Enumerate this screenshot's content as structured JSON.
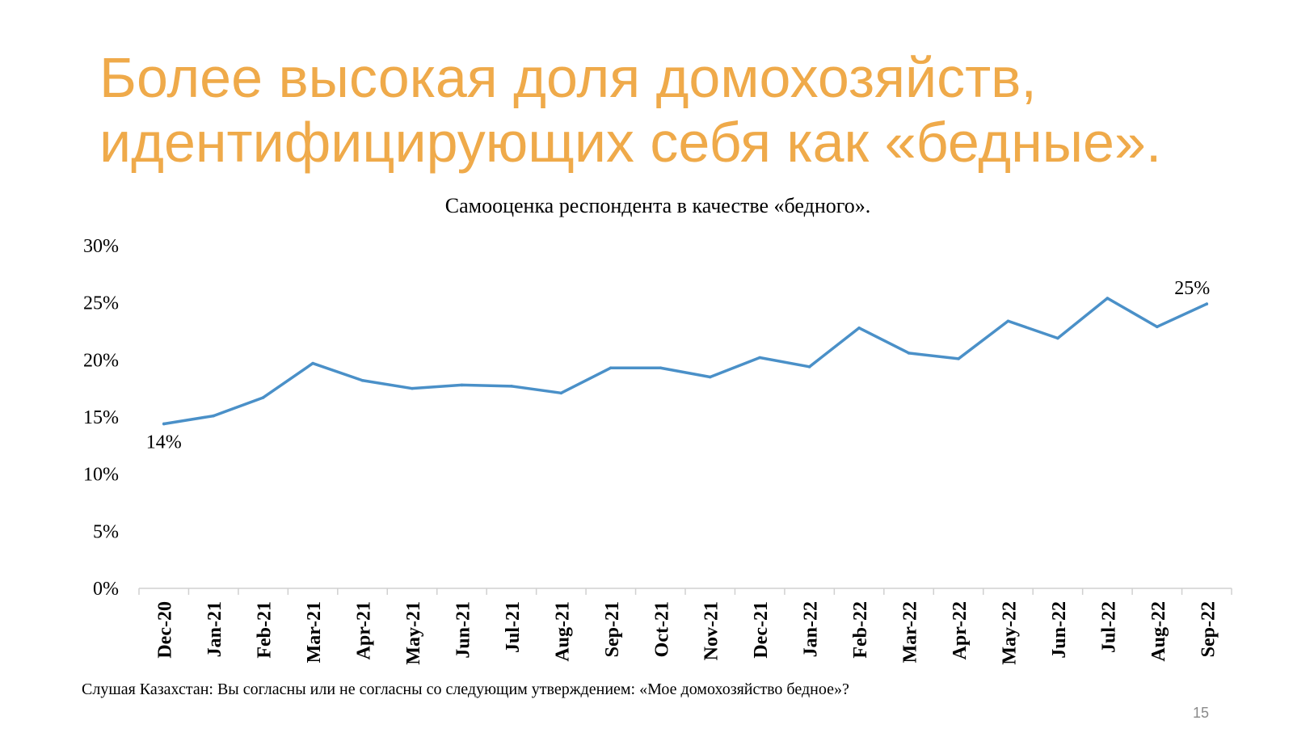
{
  "slide": {
    "title_line1": "Более высокая доля домохозяйств,",
    "title_line2": "идентифицирующих себя как «бедные».",
    "footnote": "Слушая Казахстан: Вы согласны или не согласны со следующим утверждением: «Мое домохозяйство бедное»?",
    "page_number": "15",
    "title_color": "#EFAA4A"
  },
  "chart_data": {
    "type": "line",
    "title": "Самооценка респондента в качестве «бедного».",
    "xlabel": "",
    "ylabel": "",
    "categories": [
      "Dec-20",
      "Jan-21",
      "Feb-21",
      "Mar-21",
      "Apr-21",
      "May-21",
      "Jun-21",
      "Jul-21",
      "Aug-21",
      "Sep-21",
      "Oct-21",
      "Nov-21",
      "Dec-21",
      "Jan-22",
      "Feb-22",
      "Mar-22",
      "Apr-22",
      "May-22",
      "Jun-22",
      "Jul-22",
      "Aug-22",
      "Sep-22"
    ],
    "series": [
      {
        "values": [
          14.4,
          15.1,
          16.7,
          19.7,
          18.2,
          17.5,
          17.8,
          17.7,
          17.1,
          19.3,
          19.3,
          18.5,
          20.2,
          19.4,
          22.8,
          20.6,
          20.1,
          23.4,
          21.9,
          25.4,
          22.9,
          24.9
        ],
        "color": "#4A90C8"
      }
    ],
    "data_labels": [
      {
        "index": 0,
        "text": "14%",
        "placement": "below"
      },
      {
        "index": 21,
        "text": "25%",
        "placement": "above"
      }
    ],
    "yticks": [
      "0%",
      "5%",
      "10%",
      "15%",
      "20%",
      "25%",
      "30%"
    ],
    "ylim": [
      0,
      30
    ],
    "grid": false,
    "legend": "none"
  }
}
